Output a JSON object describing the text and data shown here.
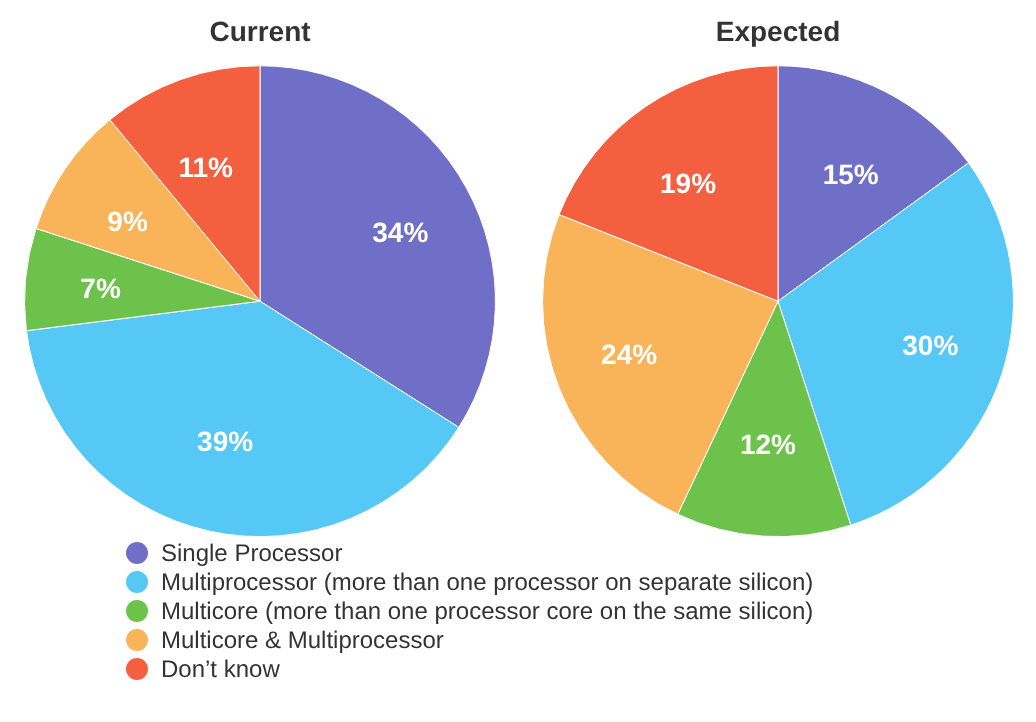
{
  "chart_data": [
    {
      "type": "pie",
      "title": "Current",
      "categories": [
        "Single Processor",
        "Multiprocessor (more than one processor on separate silicon)",
        "Multicore (more than one processor core on the same silicon)",
        "Multicore & Multiprocessor",
        "Don’t know"
      ],
      "values": [
        34,
        39,
        7,
        9,
        11
      ],
      "value_labels": [
        "34%",
        "39%",
        "7%",
        "9%",
        "11%"
      ],
      "colors": [
        "#6f6fc8",
        "#55c8f5",
        "#6cc24a",
        "#f9b45a",
        "#f4603f"
      ],
      "legend": "bottom"
    },
    {
      "type": "pie",
      "title": "Expected",
      "values": [
        15,
        30,
        12,
        24,
        19
      ],
      "value_labels": [
        "15%",
        "30%",
        "12%",
        "24%",
        "19%"
      ],
      "colors": [
        "#6f6fc8",
        "#55c8f5",
        "#6cc24a",
        "#f9b45a",
        "#f4603f"
      ]
    }
  ]
}
